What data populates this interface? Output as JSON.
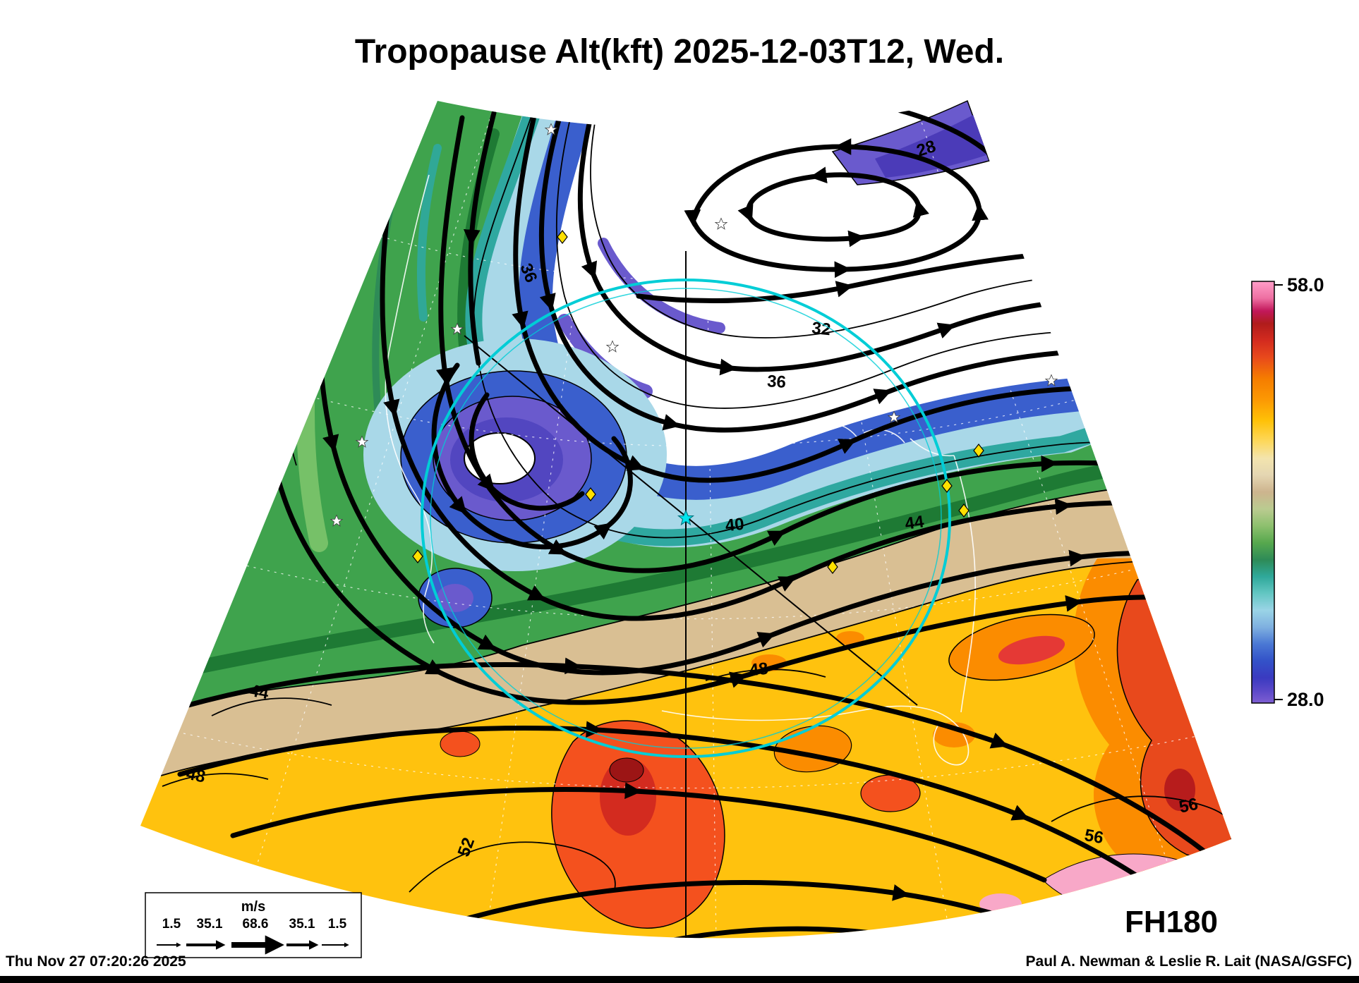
{
  "title": "Tropopause Alt(kft) 2025-12-03T12, Wed.",
  "forecast_label": "FH180",
  "footer": {
    "timestamp": "Thu Nov 27 07:20:26 2025",
    "credit": "Paul A. Newman & Leslie R. Lait (NASA/GSFC)"
  },
  "colorbar": {
    "max_label": "58.0",
    "min_label": "28.0",
    "stops": [
      {
        "o": "0%",
        "c": "#FF9EC8"
      },
      {
        "o": "4%",
        "c": "#EE6FA2"
      },
      {
        "o": "7%",
        "c": "#C2185B"
      },
      {
        "o": "10%",
        "c": "#B01C1C"
      },
      {
        "o": "14%",
        "c": "#D32B1F"
      },
      {
        "o": "18%",
        "c": "#E8491C"
      },
      {
        "o": "23%",
        "c": "#F57C00"
      },
      {
        "o": "28%",
        "c": "#FC9803"
      },
      {
        "o": "33%",
        "c": "#FFC107"
      },
      {
        "o": "38%",
        "c": "#FDD85D"
      },
      {
        "o": "42%",
        "c": "#F3E4AE"
      },
      {
        "o": "46%",
        "c": "#E4D6B2"
      },
      {
        "o": "50%",
        "c": "#CDB48E"
      },
      {
        "o": "54%",
        "c": "#BACB90"
      },
      {
        "o": "58%",
        "c": "#8DC06E"
      },
      {
        "o": "62%",
        "c": "#57A84E"
      },
      {
        "o": "66%",
        "c": "#2E8B57"
      },
      {
        "o": "70%",
        "c": "#2FA89A"
      },
      {
        "o": "74%",
        "c": "#63C6C2"
      },
      {
        "o": "78%",
        "c": "#9AD4E6"
      },
      {
        "o": "82%",
        "c": "#7FB0E0"
      },
      {
        "o": "86%",
        "c": "#4A78D4"
      },
      {
        "o": "90%",
        "c": "#3352C8"
      },
      {
        "o": "94%",
        "c": "#3A3AC0"
      },
      {
        "o": "97%",
        "c": "#5A48C8"
      },
      {
        "o": "100%",
        "c": "#7E5ED2"
      }
    ]
  },
  "wind_legend": {
    "units_label": "m/s",
    "speed_labels": [
      "1.5",
      "35.1",
      "68.6",
      "35.1",
      "1.5"
    ]
  },
  "contour_labels": [
    {
      "text": "28"
    },
    {
      "text": "32"
    },
    {
      "text": "36"
    },
    {
      "text": "36"
    },
    {
      "text": "40"
    },
    {
      "text": "44"
    },
    {
      "text": "44"
    },
    {
      "text": "48"
    },
    {
      "text": "48"
    },
    {
      "text": "52"
    },
    {
      "text": "56"
    },
    {
      "text": "56"
    }
  ],
  "contour_levels_kft": [
    "28",
    "32",
    "36",
    "40",
    "44",
    "48",
    "52",
    "56"
  ],
  "map_palette": {
    "low_purple": "#6A5ACD",
    "blue": "#3A5FCD",
    "light_blue": "#A9D8E8",
    "teal": "#2FA8A0",
    "green": "#3FA34D",
    "dark_green": "#1E7A34",
    "tan": "#D9BF93",
    "yellow": "#FFC20E",
    "orange": "#FB8C00",
    "orange_red": "#F4511E",
    "dark_red": "#B71C1C",
    "pink": "#F8A8C8",
    "range_ring_cyan": "#00CDD6",
    "marker_yellow": "#FFE000"
  }
}
